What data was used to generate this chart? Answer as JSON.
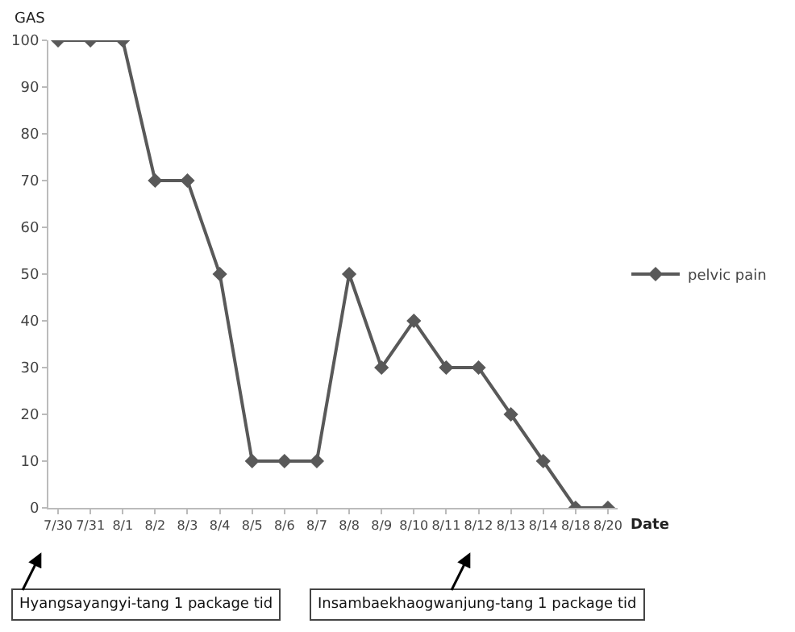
{
  "chart_data": {
    "type": "line",
    "ylabel": "GAS",
    "xlabel": "Date",
    "categories": [
      "7/30",
      "7/31",
      "8/1",
      "8/2",
      "8/3",
      "8/4",
      "8/5",
      "8/6",
      "8/7",
      "8/8",
      "8/9",
      "8/10",
      "8/11",
      "8/12",
      "8/13",
      "8/14",
      "8/18",
      "8/20"
    ],
    "series": [
      {
        "name": "pelvic pain",
        "color": "#595959",
        "values": [
          100,
          100,
          100,
          70,
          70,
          50,
          10,
          10,
          10,
          50,
          30,
          40,
          30,
          30,
          20,
          10,
          0,
          0
        ]
      }
    ],
    "ylim": [
      0,
      100
    ],
    "yticks": [
      0,
      10,
      20,
      30,
      40,
      50,
      60,
      70,
      80,
      90,
      100
    ],
    "grid": false,
    "legend": "right",
    "marker": "diamond",
    "line_style": "solid",
    "annotations": [
      "Hyangsayangyi-tang 1 package tid",
      "Insambaekhaogwanjung-tang 1 package tid"
    ]
  }
}
